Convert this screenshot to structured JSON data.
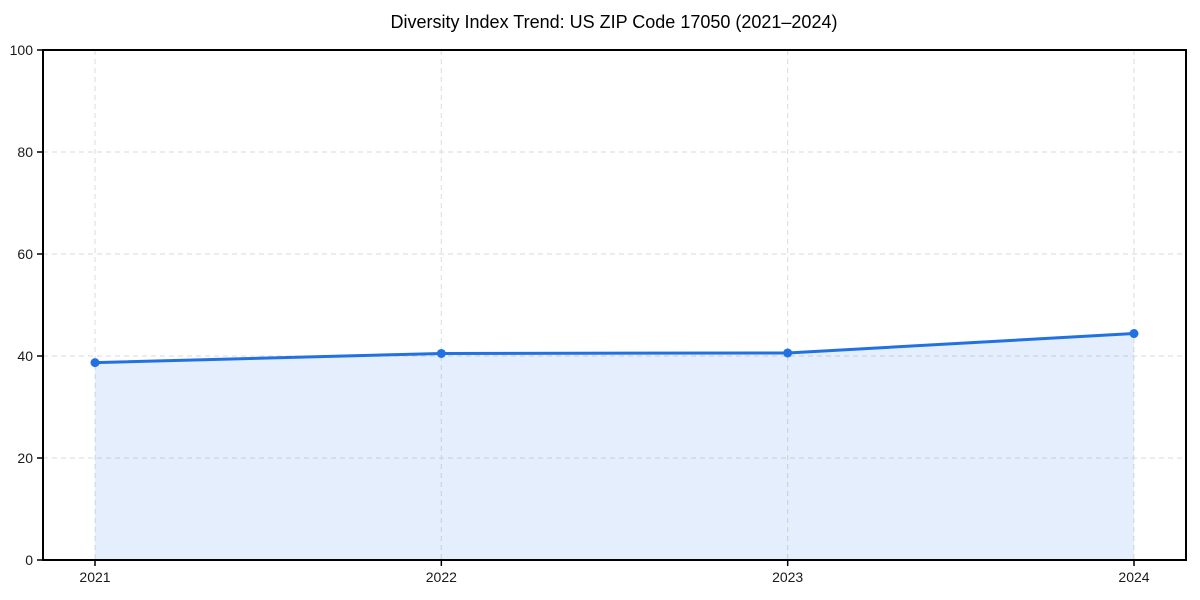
{
  "chart_data": {
    "type": "area",
    "title": "Diversity Index Trend: US ZIP Code 17050 (2021–2024)",
    "x": [
      "2021",
      "2022",
      "2023",
      "2024"
    ],
    "series": [
      {
        "name": "Diversity Index",
        "values": [
          38.7,
          40.5,
          40.6,
          44.4
        ]
      }
    ],
    "xlabel": "",
    "ylabel": "",
    "ylim": [
      0,
      100
    ],
    "yticks": [
      0,
      20,
      40,
      60,
      80,
      100
    ],
    "grid": "dashed, both axes",
    "legend": "none",
    "colors": {
      "line": "#2271e3",
      "marker": "#2271e3",
      "area_fill": "rgba(34,113,227,0.12)",
      "gridline": "#e1e1e1",
      "spine": "#000000",
      "tick_label": "#1a1a1a",
      "background": "#ffffff"
    }
  }
}
